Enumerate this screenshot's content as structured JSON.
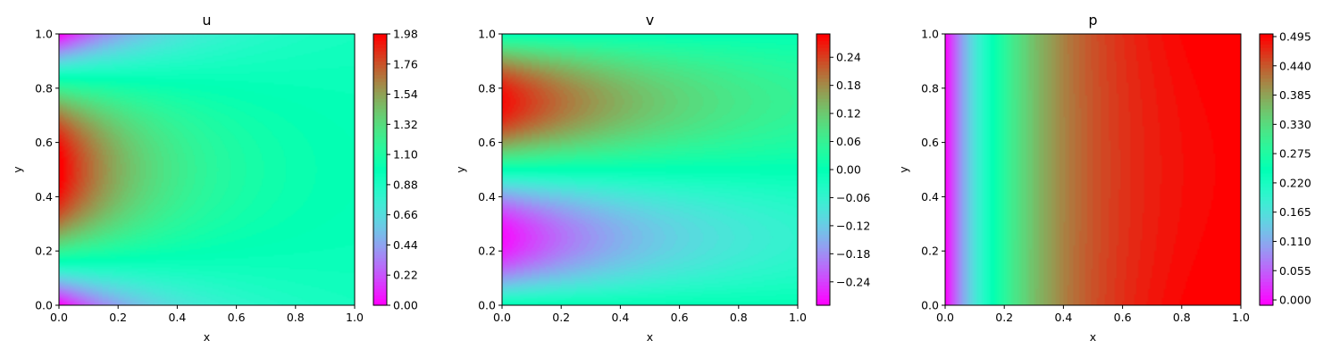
{
  "chart_data": [
    {
      "type": "heatmap",
      "title": "u",
      "xlabel": "x",
      "ylabel": "y",
      "xlim": [
        0.0,
        1.0
      ],
      "ylim": [
        0.0,
        1.0
      ],
      "x_ticks": [
        "0.0",
        "0.2",
        "0.4",
        "0.6",
        "0.8",
        "1.0"
      ],
      "y_ticks": [
        "0.0",
        "0.2",
        "0.4",
        "0.6",
        "0.8",
        "1.0"
      ],
      "colorbar": {
        "range": [
          0.0,
          1.98
        ],
        "ticks": [
          "0.00",
          "0.22",
          "0.44",
          "0.66",
          "0.88",
          "1.10",
          "1.32",
          "1.54",
          "1.76",
          "1.98"
        ]
      },
      "colormap": "rainbow",
      "field": "inlet parabolic profile peaking ~1.98 at y=0.5, decaying to uniform ~0.95 by x=1"
    },
    {
      "type": "heatmap",
      "title": "v",
      "xlabel": "x",
      "ylabel": "y",
      "xlim": [
        0.0,
        1.0
      ],
      "ylim": [
        0.0,
        1.0
      ],
      "x_ticks": [
        "0.0",
        "0.2",
        "0.4",
        "0.6",
        "0.8",
        "1.0"
      ],
      "y_ticks": [
        "0.0",
        "0.2",
        "0.4",
        "0.6",
        "0.8",
        "1.0"
      ],
      "colorbar": {
        "range": [
          -0.29,
          0.29
        ],
        "ticks": [
          "−0.24",
          "−0.18",
          "−0.12",
          "−0.06",
          "0.00",
          "0.06",
          "0.12",
          "0.18",
          "0.24"
        ]
      },
      "colormap": "rainbow",
      "field": "max ~0.28 near (0, 0.75), min ~-0.28 near (0, 0.25), decaying toward x=1"
    },
    {
      "type": "heatmap",
      "title": "p",
      "xlabel": "x",
      "ylabel": "y",
      "xlim": [
        0.0,
        1.0
      ],
      "ylim": [
        0.0,
        1.0
      ],
      "x_ticks": [
        "0.0",
        "0.2",
        "0.4",
        "0.6",
        "0.8",
        "1.0"
      ],
      "y_ticks": [
        "0.0",
        "0.2",
        "0.4",
        "0.6",
        "0.8",
        "1.0"
      ],
      "colorbar": {
        "range": [
          -0.01,
          0.5
        ],
        "ticks": [
          "0.000",
          "0.055",
          "0.110",
          "0.165",
          "0.220",
          "0.275",
          "0.330",
          "0.385",
          "0.440",
          "0.495"
        ]
      },
      "colormap": "rainbow",
      "field": "rises from ~0 at x=0 to ~0.5 at x=1, nearly independent of y"
    }
  ]
}
